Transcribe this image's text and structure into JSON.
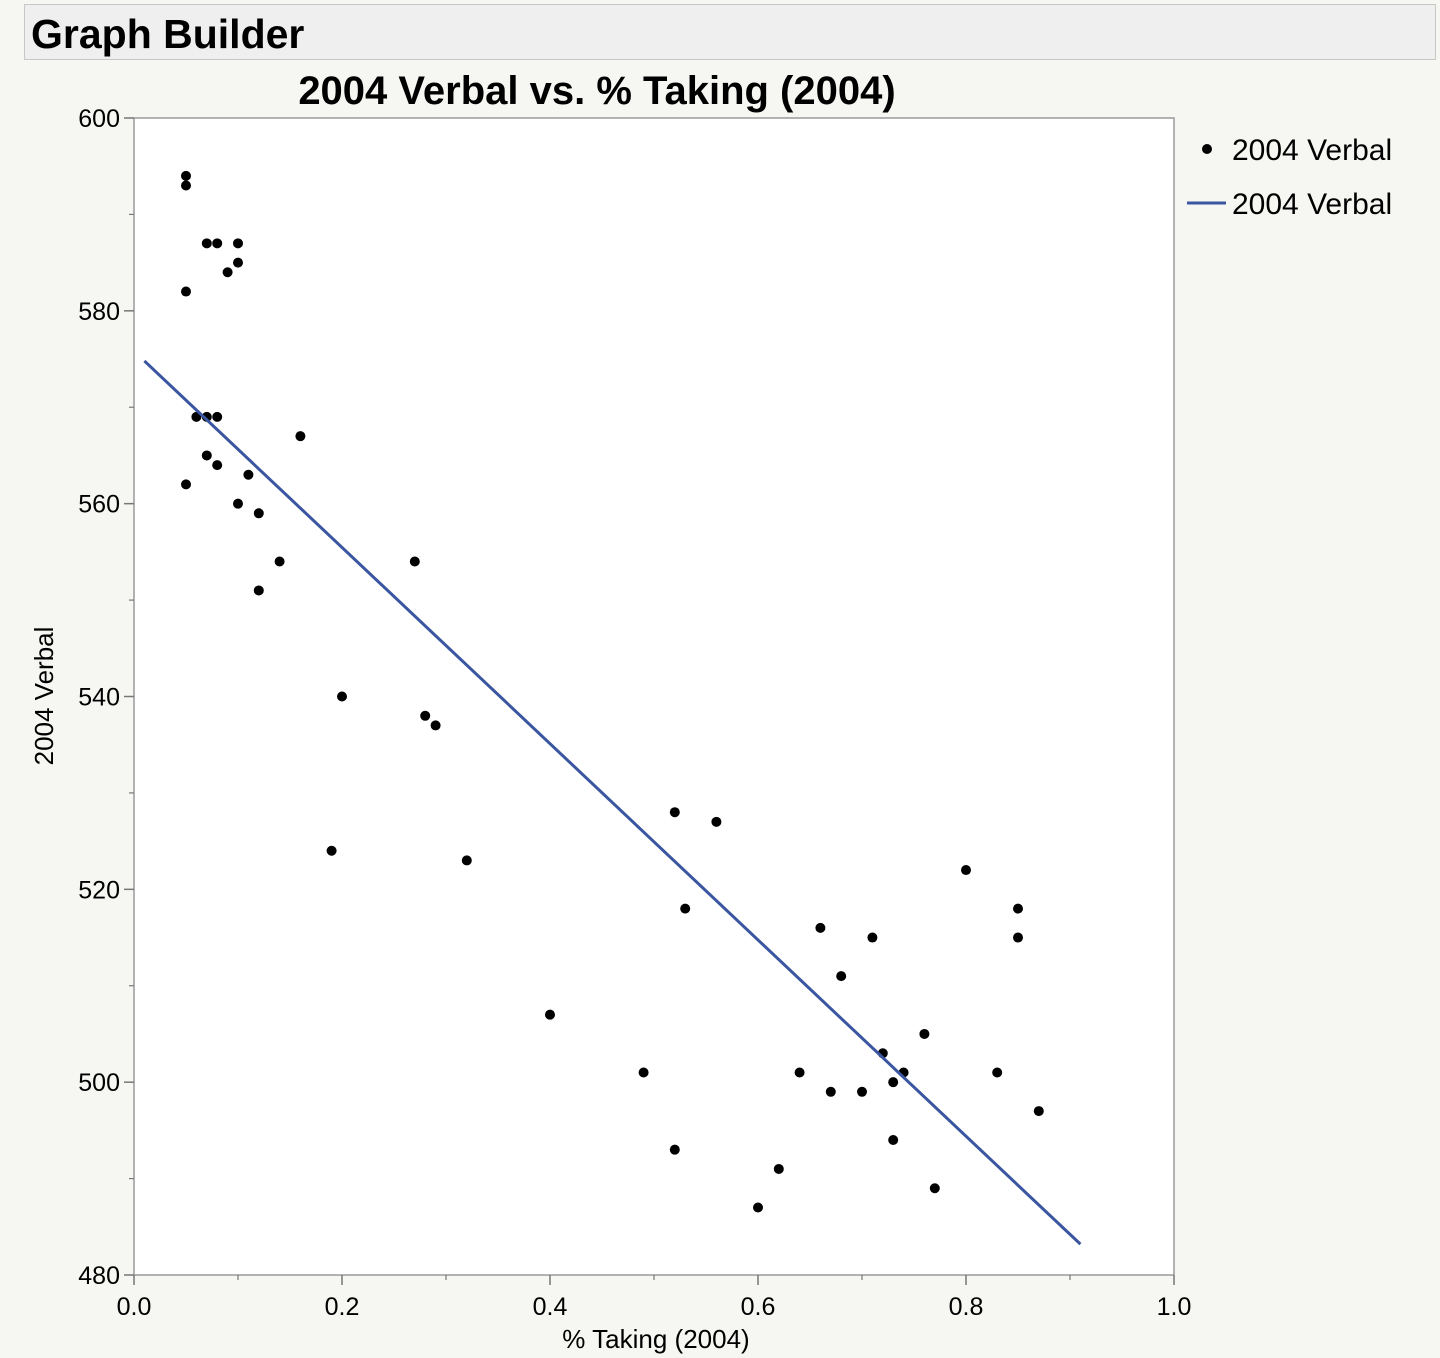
{
  "window": {
    "title": "Graph Builder"
  },
  "legend": {
    "items": [
      {
        "kind": "marker",
        "label": "2004 Verbal"
      },
      {
        "kind": "line",
        "label": "2004 Verbal"
      }
    ]
  },
  "colors": {
    "points": "#000000",
    "fit_line": "#3a56a0",
    "plot_bg": "#ffffff",
    "page_bg": "#f6f6f2"
  },
  "chart_data": {
    "type": "scatter",
    "title": "2004 Verbal vs. % Taking (2004)",
    "xlabel": "% Taking (2004)",
    "ylabel": "2004 Verbal",
    "xlim": [
      0,
      1
    ],
    "ylim": [
      480,
      600
    ],
    "x_ticks": [
      "0.0",
      "0.2",
      "0.4",
      "0.6",
      "0.8",
      "1.0"
    ],
    "y_ticks": [
      "480",
      "500",
      "520",
      "540",
      "560",
      "580",
      "600"
    ],
    "grid": false,
    "legend_position": "right",
    "series": [
      {
        "name": "2004 Verbal",
        "kind": "points",
        "points": [
          [
            0.05,
            594
          ],
          [
            0.05,
            593
          ],
          [
            0.05,
            582
          ],
          [
            0.05,
            562
          ],
          [
            0.07,
            587
          ],
          [
            0.08,
            587
          ],
          [
            0.1,
            587
          ],
          [
            0.1,
            585
          ],
          [
            0.09,
            584
          ],
          [
            0.06,
            569
          ],
          [
            0.07,
            569
          ],
          [
            0.08,
            569
          ],
          [
            0.07,
            565
          ],
          [
            0.08,
            564
          ],
          [
            0.11,
            563
          ],
          [
            0.1,
            560
          ],
          [
            0.12,
            559
          ],
          [
            0.16,
            567
          ],
          [
            0.14,
            554
          ],
          [
            0.12,
            551
          ],
          [
            0.27,
            554
          ],
          [
            0.2,
            540
          ],
          [
            0.28,
            538
          ],
          [
            0.29,
            537
          ],
          [
            0.19,
            524
          ],
          [
            0.32,
            523
          ],
          [
            0.4,
            507
          ],
          [
            0.49,
            501
          ],
          [
            0.52,
            528
          ],
          [
            0.56,
            527
          ],
          [
            0.53,
            518
          ],
          [
            0.52,
            493
          ],
          [
            0.6,
            487
          ],
          [
            0.62,
            491
          ],
          [
            0.64,
            501
          ],
          [
            0.66,
            516
          ],
          [
            0.67,
            499
          ],
          [
            0.68,
            511
          ],
          [
            0.7,
            499
          ],
          [
            0.71,
            515
          ],
          [
            0.72,
            503
          ],
          [
            0.73,
            500
          ],
          [
            0.74,
            501
          ],
          [
            0.73,
            494
          ],
          [
            0.76,
            505
          ],
          [
            0.77,
            489
          ],
          [
            0.8,
            522
          ],
          [
            0.83,
            501
          ],
          [
            0.85,
            518
          ],
          [
            0.85,
            515
          ],
          [
            0.87,
            497
          ]
        ]
      },
      {
        "name": "2004 Verbal",
        "kind": "fit_line",
        "x": [
          0.01,
          0.91
        ],
        "y": [
          574.8,
          483.2
        ]
      }
    ]
  }
}
